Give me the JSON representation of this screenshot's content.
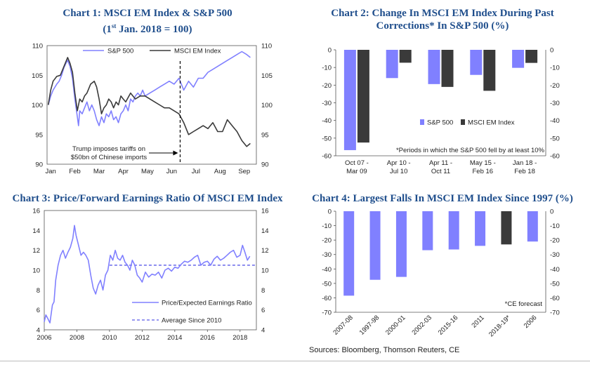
{
  "colors": {
    "sp500": "#8080ff",
    "msci": "#3a3a3a",
    "forecast": "#3a3a3a",
    "avg": "#5a5ae8",
    "title": "#1f4e8c"
  },
  "chart_data": [
    {
      "id": "c1",
      "type": "line",
      "title_main": "Chart 1: MSCI EM Index & S&P 500",
      "title_pre": "(1",
      "title_sup": "st",
      "title_post": " Jan. 2018 = 100)",
      "x_labels": [
        "Jan",
        "Feb",
        "Mar",
        "Apr",
        "May",
        "Jun",
        "Jul",
        "Aug",
        "Sep"
      ],
      "ylim": [
        90,
        110
      ],
      "yticks": [
        90,
        95,
        100,
        105,
        110
      ],
      "annotation": [
        "Trump imposes tariffs on",
        "$50bn of Chinese imports"
      ],
      "annotation_x": 5.45,
      "series": [
        {
          "name": "S&P 500",
          "color_key": "sp500",
          "x": [
            0,
            0.1,
            0.2,
            0.35,
            0.45,
            0.55,
            0.65,
            0.75,
            0.8,
            0.9,
            1.0,
            1.1,
            1.2,
            1.25,
            1.3,
            1.4,
            1.5,
            1.6,
            1.7,
            1.8,
            1.9,
            2.0,
            2.1,
            2.2,
            2.3,
            2.4,
            2.5,
            2.6,
            2.7,
            2.8,
            2.9,
            3.0,
            3.1,
            3.2,
            3.3,
            3.4,
            3.5,
            3.6,
            3.7,
            3.8,
            3.9,
            4.0,
            4.2,
            4.4,
            4.6,
            4.8,
            5.0,
            5.2,
            5.4,
            5.6,
            5.8,
            6.0,
            6.2,
            6.4,
            6.6,
            6.8,
            7.0,
            7.2,
            7.4,
            7.6,
            7.8,
            8.0,
            8.2,
            8.35
          ],
          "y": [
            100,
            101.5,
            102.5,
            103.5,
            104,
            105,
            106.3,
            107.2,
            107.5,
            106.5,
            104.5,
            101,
            98,
            96.5,
            99,
            98.5,
            99.5,
            100.5,
            99,
            100,
            99,
            97.5,
            96.5,
            98,
            97,
            98.5,
            98,
            99,
            97.5,
            98,
            97,
            98.5,
            99,
            100,
            99,
            101,
            100.5,
            101.5,
            102,
            101.5,
            102.5,
            101.5,
            102,
            102.5,
            103,
            103.5,
            104,
            103.5,
            104.5,
            102.5,
            104,
            103,
            104.5,
            104.5,
            105.5,
            106,
            106.5,
            107,
            107.5,
            108,
            108.5,
            109,
            108.5,
            108
          ]
        },
        {
          "name": "MSCI EM Index",
          "color_key": "msci",
          "x": [
            0,
            0.1,
            0.2,
            0.35,
            0.5,
            0.65,
            0.8,
            0.9,
            1.0,
            1.1,
            1.2,
            1.3,
            1.4,
            1.5,
            1.6,
            1.75,
            1.9,
            2.0,
            2.1,
            2.2,
            2.3,
            2.4,
            2.5,
            2.6,
            2.7,
            2.8,
            2.9,
            3.0,
            3.1,
            3.2,
            3.4,
            3.6,
            3.8,
            4.0,
            4.2,
            4.4,
            4.6,
            4.8,
            5.0,
            5.2,
            5.4,
            5.6,
            5.8,
            6.0,
            6.2,
            6.4,
            6.6,
            6.8,
            7.0,
            7.2,
            7.4,
            7.6,
            7.8,
            8.0,
            8.2,
            8.35
          ],
          "y": [
            100,
            102.5,
            104,
            104.8,
            105,
            106.5,
            108,
            107,
            105.5,
            102,
            99,
            101,
            100.5,
            101.5,
            102,
            103.5,
            104,
            103,
            101,
            98.5,
            99.5,
            100,
            101,
            100.5,
            99.5,
            100.5,
            100,
            101.5,
            101,
            100.5,
            102,
            101,
            101.5,
            101.5,
            101,
            100.5,
            100,
            99.5,
            99.5,
            99,
            98.5,
            97,
            95,
            95.5,
            96,
            96.5,
            96,
            97,
            95.5,
            95.5,
            97.5,
            96.5,
            95.5,
            94,
            93,
            93.5
          ]
        }
      ]
    },
    {
      "id": "c2",
      "type": "bar",
      "title": [
        "Chart 2: Change In MSCI EM Index During Past",
        "Corrections* In S&P 500 (%)"
      ],
      "categories": [
        [
          "Oct 07 -",
          "Mar 09"
        ],
        [
          "Apr 10 -",
          "Jul 10"
        ],
        [
          "Apr 11 -",
          "Oct 11"
        ],
        [
          "May 15 -",
          "Feb 16"
        ],
        [
          "Jan 18 -",
          "Feb 18"
        ]
      ],
      "ylim": [
        -60,
        0
      ],
      "yticks": [
        0,
        -10,
        -20,
        -30,
        -40,
        -50,
        -60
      ],
      "series": [
        {
          "name": "S&P 500",
          "color_key": "sp500",
          "values": [
            -56.8,
            -16,
            -19.4,
            -14.2,
            -10.2
          ]
        },
        {
          "name": "MSCI EM Index",
          "color_key": "msci",
          "values": [
            -52.5,
            -7.3,
            -21,
            -23.2,
            -7.4
          ]
        }
      ],
      "footnote": "*Periods in which the S&P 500 fell by at least 10%"
    },
    {
      "id": "c3",
      "type": "line",
      "title": "Chart 3: Price/Forward Earnings Ratio Of MSCI EM Index",
      "x_labels": [
        "2006",
        "2008",
        "2010",
        "2012",
        "2014",
        "2016",
        "2018"
      ],
      "xlim": [
        2006,
        2019
      ],
      "ylim": [
        4,
        16
      ],
      "yticks": [
        4,
        6,
        8,
        10,
        12,
        14,
        16
      ],
      "average": 10.5,
      "series": [
        {
          "name": "Price/Expected Earnings Ratio",
          "color_key": "sp500",
          "x": [
            2006,
            2006.1,
            2006.2,
            2006.35,
            2006.5,
            2006.6,
            2006.7,
            2006.85,
            2007,
            2007.15,
            2007.3,
            2007.45,
            2007.6,
            2007.75,
            2007.85,
            2007.95,
            2008.1,
            2008.25,
            2008.4,
            2008.55,
            2008.7,
            2008.85,
            2009,
            2009.15,
            2009.3,
            2009.45,
            2009.6,
            2009.75,
            2009.9,
            2010.05,
            2010.2,
            2010.35,
            2010.5,
            2010.65,
            2010.8,
            2010.95,
            2011.1,
            2011.25,
            2011.4,
            2011.55,
            2011.7,
            2011.85,
            2012,
            2012.2,
            2012.4,
            2012.6,
            2012.8,
            2013,
            2013.2,
            2013.4,
            2013.6,
            2013.8,
            2014,
            2014.2,
            2014.4,
            2014.6,
            2014.8,
            2015,
            2015.2,
            2015.4,
            2015.6,
            2015.8,
            2016,
            2016.2,
            2016.4,
            2016.6,
            2016.8,
            2017,
            2017.2,
            2017.4,
            2017.6,
            2017.8,
            2018,
            2018.15,
            2018.3,
            2018.45,
            2018.6
          ],
          "y": [
            4.8,
            5.5,
            5.2,
            4.7,
            6.5,
            6.8,
            9,
            10.5,
            11.5,
            12,
            11.2,
            11.8,
            12.3,
            13.2,
            14.5,
            13.5,
            12.5,
            11.5,
            11.8,
            11.5,
            11,
            9.5,
            8.2,
            7.6,
            8.5,
            9,
            8,
            9.5,
            10,
            11.5,
            11,
            12,
            11.2,
            11,
            11.5,
            10.8,
            10.5,
            10,
            11,
            10.5,
            9.5,
            9.2,
            8.8,
            9.8,
            9.3,
            9.6,
            9.5,
            9.8,
            9.2,
            10,
            10.2,
            9.9,
            10.3,
            10.2,
            10.6,
            10.9,
            10.8,
            11,
            11.3,
            11.5,
            10.5,
            10.8,
            10.9,
            10.5,
            11.1,
            11.4,
            11,
            11.2,
            11.5,
            11.8,
            12,
            11.3,
            11.5,
            12.5,
            11.8,
            11,
            11.4
          ]
        }
      ],
      "legend": [
        "Price/Expected Earnings Ratio",
        "Average Since 2010"
      ]
    },
    {
      "id": "c4",
      "type": "bar",
      "title": "Chart 4: Largest Falls In MSCI EM Index Since 1997 (%)",
      "categories": [
        "2007-08",
        "1997-98",
        "2000-01",
        "2002-03",
        "2015-16",
        "2011",
        "2018-19*",
        "2006"
      ],
      "ylim": [
        -70,
        0
      ],
      "yticks": [
        0,
        -10,
        -20,
        -30,
        -40,
        -50,
        -60,
        -70
      ],
      "values": [
        -58.5,
        -47.5,
        -45.5,
        -27,
        -26.5,
        -24,
        -23,
        -21
      ],
      "forecast_index": 6,
      "footnote": "*CE forecast"
    }
  ],
  "source": "Sources: Bloomberg, Thomson Reuters, CE"
}
